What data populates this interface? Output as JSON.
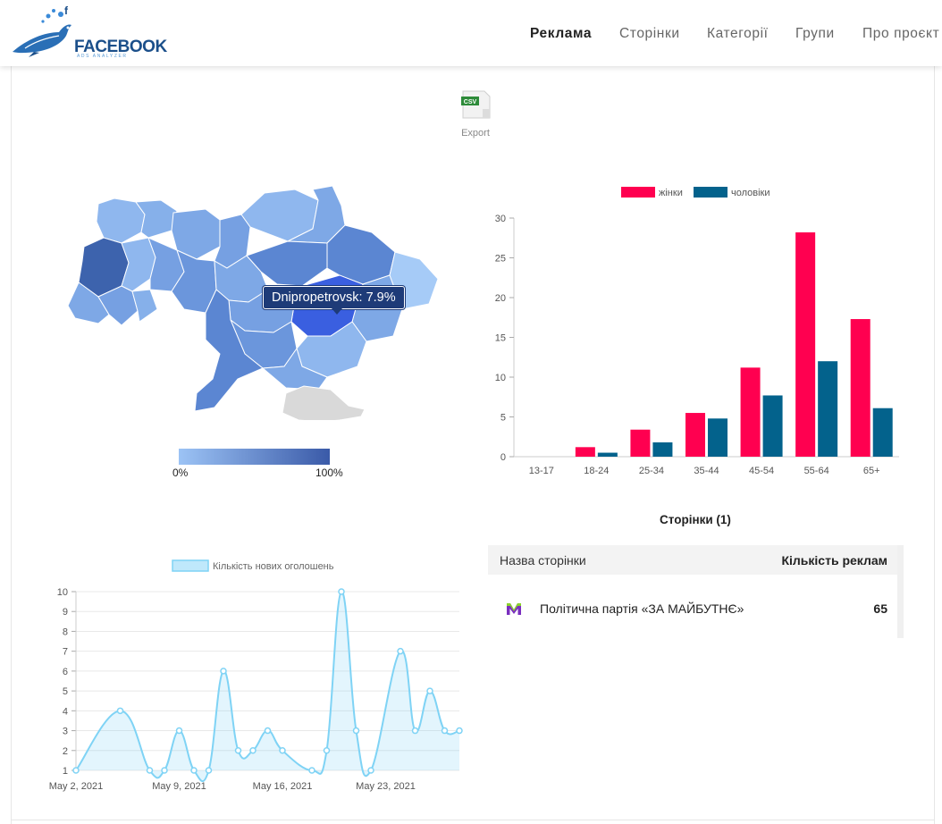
{
  "logo": {
    "text": "FACEBOOK",
    "subtext": "ADS ANALYZER"
  },
  "nav": [
    {
      "label": "Реклама",
      "active": true
    },
    {
      "label": "Сторінки",
      "active": false
    },
    {
      "label": "Категорії",
      "active": false
    },
    {
      "label": "Групи",
      "active": false
    },
    {
      "label": "Про проєкт",
      "active": false
    }
  ],
  "export": {
    "badge": "CSV",
    "label": "Export",
    "icon": "csv-file-icon"
  },
  "map": {
    "tooltip": "Dnipropetrovsk: 7.9%",
    "scale_min": "0%",
    "scale_max": "100%",
    "colors": {
      "low": "#9cc3f5",
      "high": "#3a5aa8",
      "highlight": "#3a5fe0",
      "crimea": "#d9d9d9"
    }
  },
  "chart_data": [
    {
      "type": "bar",
      "categories": [
        "13-17",
        "18-24",
        "25-34",
        "35-44",
        "45-54",
        "55-64",
        "65+"
      ],
      "series": [
        {
          "name": "жінки",
          "color": "#ff0050",
          "values": [
            0,
            1.2,
            3.4,
            5.5,
            11.2,
            28.2,
            17.3
          ]
        },
        {
          "name": "чоловіки",
          "color": "#03628c",
          "values": [
            0,
            0.5,
            1.8,
            4.8,
            7.7,
            12.0,
            6.1
          ]
        }
      ],
      "ylim": [
        0,
        30
      ],
      "yticks": [
        0,
        5,
        10,
        15,
        20,
        25,
        30
      ],
      "legend": "top"
    },
    {
      "type": "line",
      "series": [
        {
          "name": "Кількість нових оголошень",
          "color": "#7fd3f5",
          "values": [
            1,
            4,
            1,
            1,
            3,
            1,
            1,
            6,
            2,
            2,
            3,
            2,
            1,
            2,
            10,
            3,
            1,
            7,
            3,
            5,
            3,
            3
          ]
        }
      ],
      "x": [
        "May 2, 2021",
        "May 5, 2021",
        "May 7, 2021",
        "May 8, 2021",
        "May 9, 2021",
        "May 10, 2021",
        "May 11, 2021",
        "May 12, 2021",
        "May 13, 2021",
        "May 14, 2021",
        "May 15, 2021",
        "May 16, 2021",
        "May 18, 2021",
        "May 19, 2021",
        "May 20, 2021",
        "May 21, 2021",
        "May 22, 2021",
        "May 24, 2021",
        "May 25, 2021",
        "May 26, 2021",
        "May 27, 2021",
        "May 28, 2021"
      ],
      "xtick_labels": [
        "May 2, 2021",
        "May 9, 2021",
        "May 16, 2021",
        "May 23, 2021"
      ],
      "ylim": [
        1,
        10
      ],
      "yticks": [
        1,
        2,
        3,
        4,
        5,
        6,
        7,
        8,
        9,
        10
      ],
      "legend": "top"
    }
  ],
  "pages": {
    "title": "Сторінки (1)",
    "col_name": "Назва сторінки",
    "col_count": "Кількість реклам",
    "rows": [
      {
        "name": "Політична партія «ЗА МАЙБУТНЄ»",
        "count": "65",
        "icon": "party-logo-icon"
      }
    ]
  }
}
